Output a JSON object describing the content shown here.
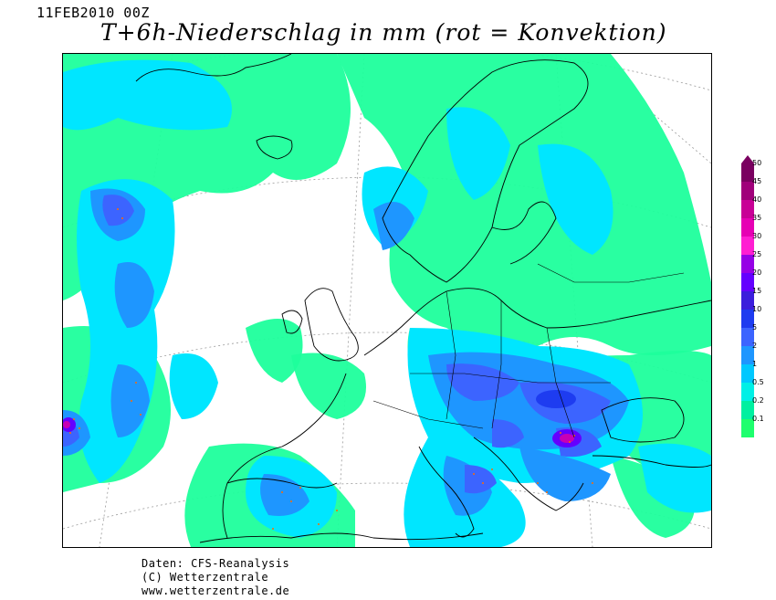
{
  "header": {
    "run_date": "11FEB2010 00Z",
    "title": "T+6h-Niederschlag in mm (rot = Konvektion)"
  },
  "legend": {
    "levels": [
      {
        "label": "50",
        "color": "#7a0060"
      },
      {
        "label": "45",
        "color": "#a0007a"
      },
      {
        "label": "40",
        "color": "#c80096"
      },
      {
        "label": "35",
        "color": "#e600b4"
      },
      {
        "label": "30",
        "color": "#ff1ed2"
      },
      {
        "label": "25",
        "color": "#9600e6"
      },
      {
        "label": "20",
        "color": "#6400ff"
      },
      {
        "label": "15",
        "color": "#3c1edc"
      },
      {
        "label": "10",
        "color": "#1e3cf0"
      },
      {
        "label": "5",
        "color": "#3c64ff"
      },
      {
        "label": "2",
        "color": "#1e96ff"
      },
      {
        "label": "1",
        "color": "#00c8ff"
      },
      {
        "label": "0.5",
        "color": "#00f0e6"
      },
      {
        "label": "0.2",
        "color": "#00f0a0"
      },
      {
        "label": "0.1",
        "color": "#1eff6e"
      }
    ]
  },
  "credits": {
    "line1": "Daten: CFS-Reanalysis",
    "line2": "(C) Wetterzentrale",
    "line3": "www.wetterzentrale.de"
  },
  "colors": {
    "light": "#1eff9c",
    "cyan": "#00e6ff",
    "mid_blue": "#1e96ff",
    "blue": "#3c64ff",
    "dark_blue": "#1e3cf0",
    "magenta": "#c800b4",
    "convection_dots": "#ff6a00",
    "coast": "#000000",
    "grid": "#9a9a9a"
  }
}
